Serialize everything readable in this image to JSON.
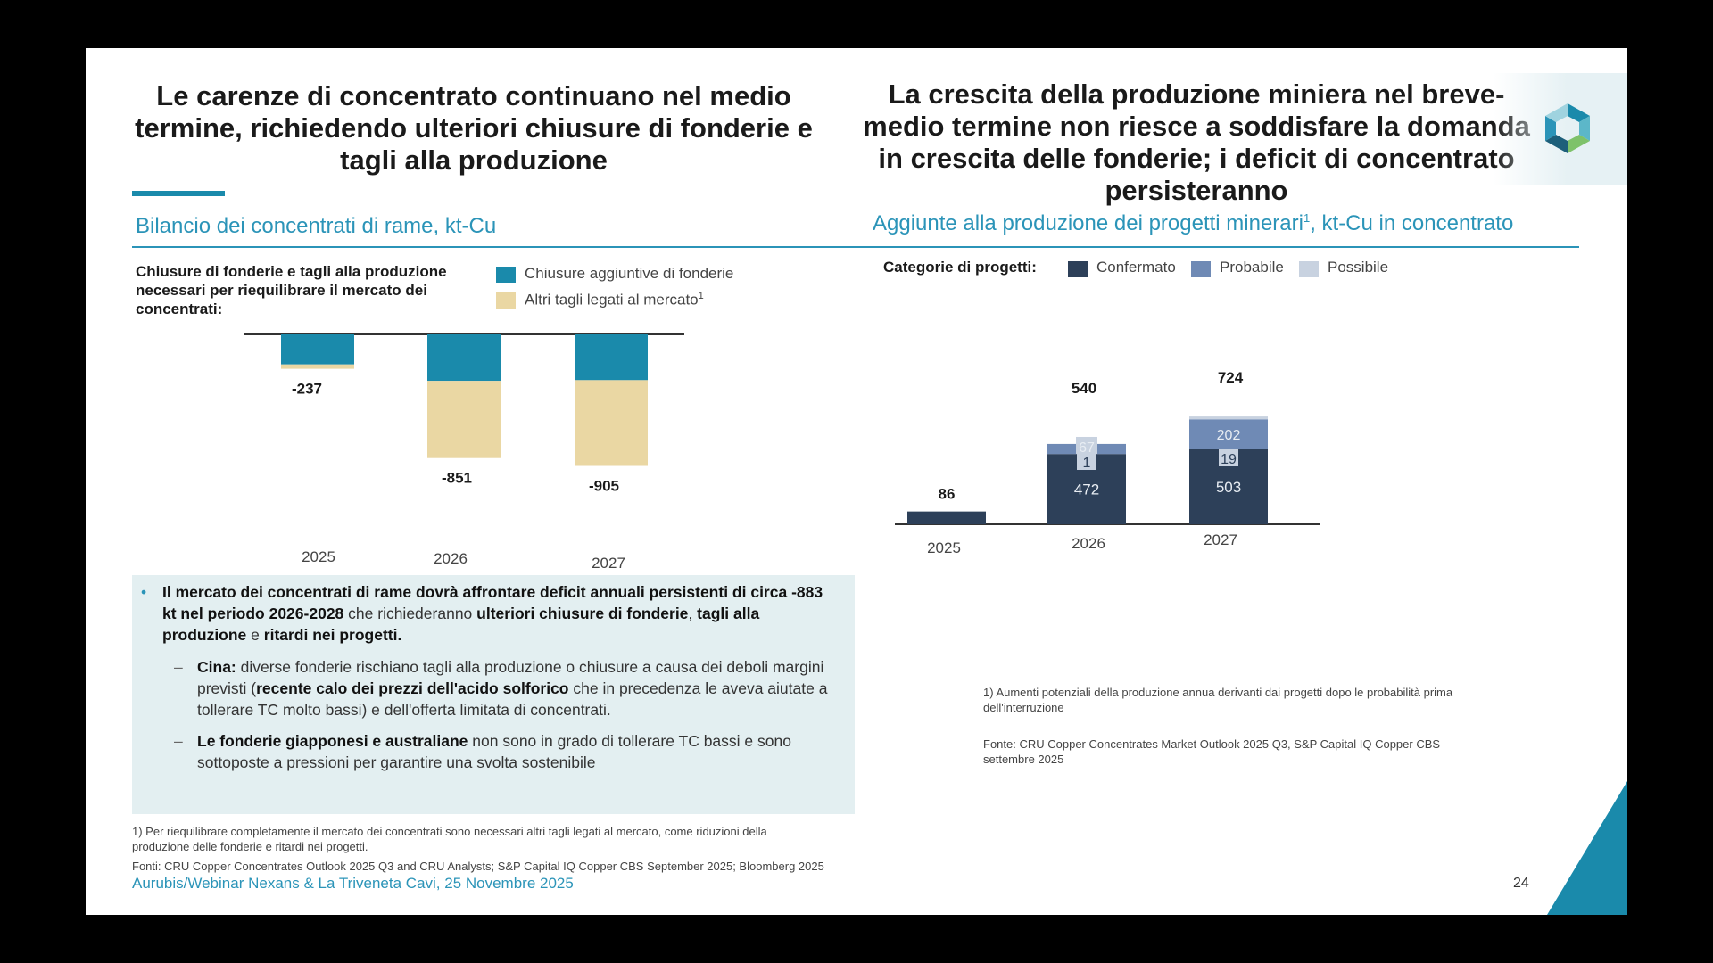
{
  "left": {
    "title": "Le carenze di concentrato continuano nel medio termine, richiedendo ulteriori chiusure di fonderie e tagli alla produzione",
    "subtitle": "Bilancio dei concentrati di rame, kt-Cu",
    "legend_intro": "Chiusure di fonderie e tagli alla produzione necessari per riequilibrare il mercato dei concentrati:",
    "legend": [
      {
        "label": "Chiusure aggiuntive di fonderie",
        "color": "#1a8aab"
      },
      {
        "label": "Altri tagli legati al mercato",
        "sup": "1",
        "color": "#ead7a3"
      }
    ]
  },
  "right": {
    "title": "La crescita della produzione miniera nel breve-medio termine non riesce a soddisfare la domanda in crescita delle fonderie; i deficit di concentrato persisteranno",
    "subtitle": "Aggiunte alla produzione dei progetti minerari",
    "subtitle_sup": "1",
    "subtitle_tail": ", kt-Cu in concentrato",
    "legend_intro": "Categorie di progetti:",
    "legend": [
      {
        "label": "Confermato",
        "color": "#2d4059"
      },
      {
        "label": "Probabile",
        "color": "#6f8ab5"
      },
      {
        "label": "Possibile",
        "color": "#c8d2e0"
      }
    ]
  },
  "chart_data": [
    {
      "type": "bar",
      "stacked": true,
      "orientation": "downward",
      "title": "Bilancio dei concentrati di rame, kt-Cu",
      "categories": [
        "2025",
        "2026",
        "2027"
      ],
      "series": [
        {
          "name": "Chiusure aggiuntive di fonderie",
          "values": [
            -207,
            -320,
            -315
          ]
        },
        {
          "name": "Altri tagli legati al mercato",
          "values": [
            -30,
            -531,
            -590
          ]
        }
      ],
      "totals": [
        "-237",
        "-851",
        "-905"
      ]
    },
    {
      "type": "bar",
      "stacked": true,
      "title": "Aggiunte alla produzione dei progetti minerari, kt-Cu in concentrato",
      "categories": [
        "2025",
        "2026",
        "2027"
      ],
      "series": [
        {
          "name": "Confermato",
          "values": [
            86,
            472,
            503
          ]
        },
        {
          "name": "Probabile",
          "values": [
            0,
            67,
            202
          ]
        },
        {
          "name": "Possibile",
          "values": [
            0,
            1,
            19
          ]
        }
      ],
      "labels": {
        "Confermato": [
          "86",
          "472",
          "503"
        ],
        "Probabile": [
          "",
          "67",
          "202"
        ],
        "Possibile": [
          "",
          "1",
          "19"
        ]
      },
      "totals": [
        "",
        "540",
        "724"
      ]
    }
  ],
  "bullets": {
    "main": [
      {
        "t": "Il mercato dei concentrati di rame dovrà affrontare deficit annuali persistenti di circa -883 kt nel periodo 2026-2028",
        "b": true
      },
      {
        "t": " che richiederanno ",
        "b": false
      },
      {
        "t": "ulteriori chiusure di fonderie",
        "b": true
      },
      {
        "t": ", ",
        "b": false
      },
      {
        "t": "tagli alla produzione",
        "b": true
      },
      {
        "t": " e ",
        "b": false
      },
      {
        "t": "ritardi nei progetti.",
        "b": true
      }
    ],
    "sub1": [
      {
        "t": "Cina:",
        "b": true
      },
      {
        "t": " diverse fonderie rischiano tagli alla produzione o chiusure a causa dei deboli margini previsti (",
        "b": false
      },
      {
        "t": "recente calo dei prezzi dell'acido solforico",
        "b": true
      },
      {
        "t": " che in precedenza le aveva aiutate a tollerare TC molto bassi) e dell'offerta limitata di concentrati.",
        "b": false
      }
    ],
    "sub2": [
      {
        "t": "Le fonderie giapponesi e australiane",
        "b": true
      },
      {
        "t": " non sono in grado di tollerare TC bassi e sono sottoposte a pressioni per garantire una svolta sostenibile",
        "b": false
      }
    ]
  },
  "footnotes": {
    "right_note_1": "1) Aumenti potenziali della produzione annua derivanti dai progetti dopo le probabilità prima",
    "right_note_2": "dell'interruzione",
    "right_source_1": "Fonte: CRU Copper Concentrates Market Outlook 2025 Q3, S&P Capital IQ Copper CBS",
    "right_source_2": "settembre 2025",
    "left_note_1": "1) Per riequilibrare completamente il mercato dei concentrati sono necessari altri tagli legati al mercato, come riduzioni della",
    "left_note_2": "produzione delle fonderie e ritardi nei progetti.",
    "left_source": "Fonti: CRU Copper Concentrates Outlook 2025 Q3 and CRU Analysts; S&P Capital IQ Copper CBS September 2025; Bloomberg 2025",
    "event": "Aurubis/Webinar Nexans & La Triveneta Cavi, 25 Novembre 2025",
    "page_number": "24"
  }
}
